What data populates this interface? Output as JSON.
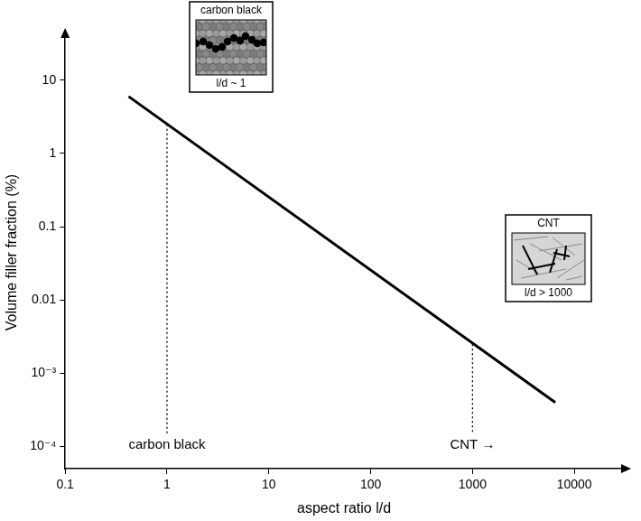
{
  "chart_data": {
    "type": "line",
    "x_label": "aspect ratio l/d",
    "y_label": "Volume filler fraction (%)",
    "x": [
      0.42,
      6500
    ],
    "values": [
      6,
      0.0004
    ],
    "color": "#000000",
    "log": true,
    "grid": false,
    "xlim": [
      0.1,
      30000
    ],
    "ylim": [
      5e-05,
      40
    ],
    "xticks": [
      0.1,
      1,
      10,
      100,
      1000,
      10000
    ],
    "yticks": [
      {
        "value": 0.0001,
        "label": "10⁻⁴"
      },
      {
        "value": 0.001,
        "label": "10⁻³"
      },
      0.01,
      0.1,
      1,
      10
    ],
    "markers": [
      {
        "x": 1,
        "y": 2.5,
        "label": "carbon black"
      },
      {
        "x": 1000,
        "y": 0.0025,
        "label": "CNT →"
      }
    ],
    "insets": [
      {
        "title": "carbon black",
        "caption": "l/d ~ 1"
      },
      {
        "title": "CNT",
        "caption": "l/d > 1000"
      }
    ]
  }
}
